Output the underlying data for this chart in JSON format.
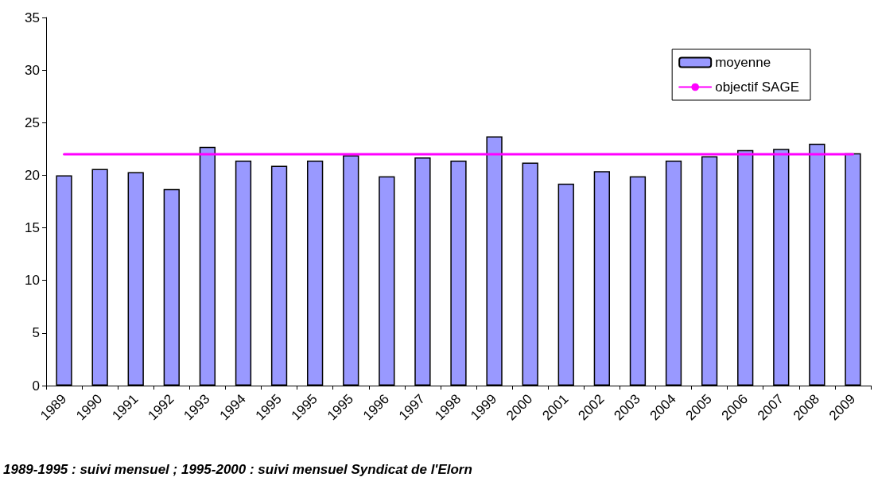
{
  "chart_data": {
    "type": "bar",
    "categories": [
      "1989",
      "1990",
      "1991",
      "1992",
      "1993",
      "1994",
      "1995",
      "1995",
      "1995",
      "1996",
      "1997",
      "1998",
      "1999",
      "2000",
      "2001",
      "2002",
      "2003",
      "2004",
      "2005",
      "2006",
      "2007",
      "2008",
      "2009"
    ],
    "series": [
      {
        "name": "moyenne",
        "color": "#9999ff",
        "values": [
          20.0,
          20.6,
          20.3,
          18.7,
          22.7,
          21.4,
          20.9,
          21.4,
          21.9,
          19.9,
          21.7,
          21.4,
          23.7,
          21.2,
          19.2,
          20.4,
          19.9,
          21.4,
          21.8,
          22.4,
          22.5,
          23.0,
          22.1
        ]
      },
      {
        "name": "objectif SAGE",
        "type": "line",
        "color": "#ff00ff",
        "values": [
          22,
          22,
          22,
          22,
          22,
          22,
          22,
          22,
          22,
          22,
          22,
          22,
          22,
          22,
          22,
          22,
          22,
          22,
          22,
          22,
          22,
          22,
          22
        ]
      }
    ],
    "ylim": [
      0,
      35
    ],
    "yticks": [
      0,
      5,
      10,
      15,
      20,
      25,
      30,
      35
    ],
    "grid": false,
    "legend": "top right",
    "marker": "none",
    "line_style": "solid",
    "annotations": [
      "1989-1995 : suivi mensuel ; 1995-2000 : suivi mensuel Syndicat de l'Elorn"
    ]
  }
}
